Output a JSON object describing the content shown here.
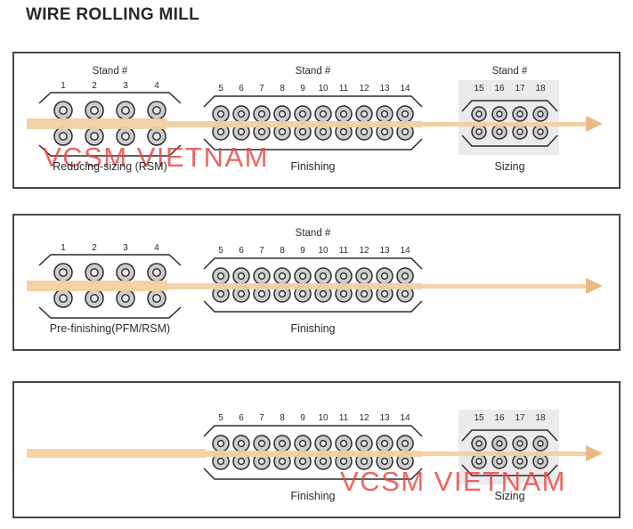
{
  "title": "WIRE ROLLING MILL",
  "colors": {
    "wire": "#f2d0a2",
    "arrow_head": "#eaba84",
    "outline": "#2b2b2b",
    "panel_border": "#454547",
    "roll_outer": "#cdcdcf",
    "roll_inner": "#e9e9ea",
    "sizing_highlight": "#ebebed",
    "watermark": "#e9453f"
  },
  "panels": [
    {
      "watermark": "VCSM VIETNAM",
      "groups": [
        {
          "type": "large",
          "stand_title": "Stand #",
          "numbers": [
            "1",
            "2",
            "3",
            "4"
          ],
          "label": "Reducing-sizing (RSM)"
        },
        {
          "type": "finishing",
          "stand_title": "Stand #",
          "numbers": [
            "5",
            "6",
            "7",
            "8",
            "9",
            "10",
            "11",
            "12",
            "13",
            "14"
          ],
          "label": "Finishing"
        },
        {
          "type": "sizing",
          "stand_title": "Stand #",
          "numbers": [
            "15",
            "16",
            "17",
            "18"
          ],
          "label": "Sizing",
          "highlighted": true
        }
      ]
    },
    {
      "watermark": null,
      "groups": [
        {
          "type": "large",
          "stand_title": "",
          "numbers": [
            "1",
            "2",
            "3",
            "4"
          ],
          "label": "Pre-finishing(PFM/RSM)"
        },
        {
          "type": "finishing",
          "stand_title": "Stand #",
          "numbers": [
            "5",
            "6",
            "7",
            "8",
            "9",
            "10",
            "11",
            "12",
            "13",
            "14"
          ],
          "label": "Finishing"
        }
      ]
    },
    {
      "watermark": "VCSM VIETNAM",
      "groups": [
        {
          "type": "finishing",
          "stand_title": "",
          "numbers": [
            "5",
            "6",
            "7",
            "8",
            "9",
            "10",
            "11",
            "12",
            "13",
            "14"
          ],
          "label": "Finishing"
        },
        {
          "type": "sizing",
          "stand_title": "",
          "numbers": [
            "15",
            "16",
            "17",
            "18"
          ],
          "label": "Sizing",
          "highlighted": true
        }
      ]
    }
  ]
}
